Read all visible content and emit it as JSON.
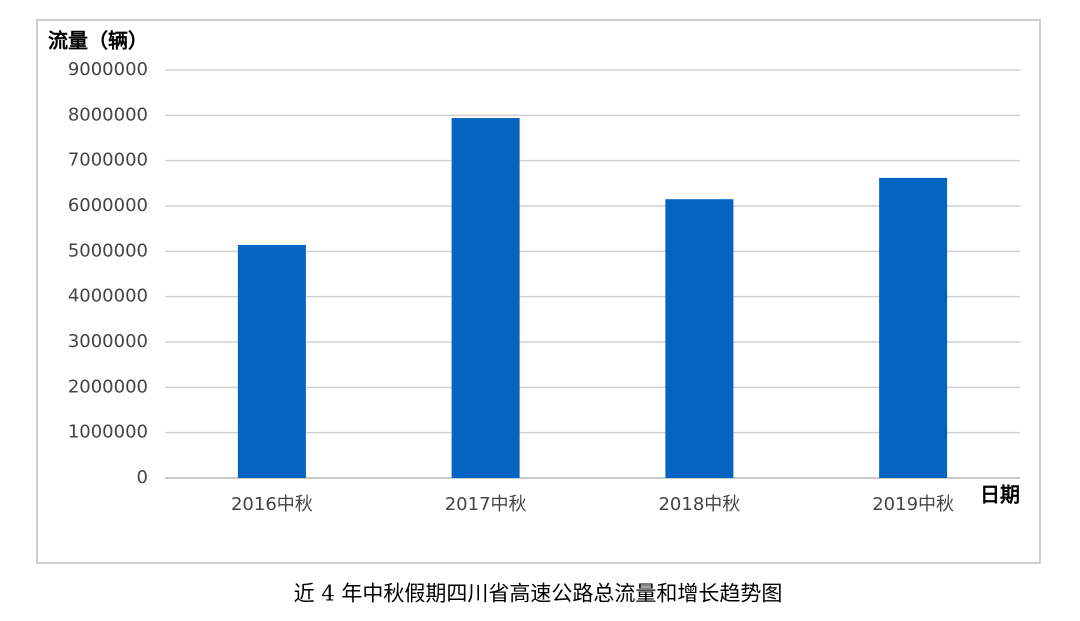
{
  "chart_data": {
    "type": "bar",
    "ylabel": "流量（辆）",
    "xlabel": "日期",
    "caption": "近 4 年中秋假期四川省高速公路总流量和增长趋势图",
    "categories": [
      "2016中秋",
      "2017中秋",
      "2018中秋",
      "2019中秋"
    ],
    "values": [
      5140000,
      7940000,
      6150000,
      6620000
    ],
    "color": "#0563c1",
    "ylim": [
      0,
      9000000
    ],
    "yticks": [
      0,
      1000000,
      2000000,
      3000000,
      4000000,
      5000000,
      6000000,
      7000000,
      8000000,
      9000000
    ],
    "grid": true
  }
}
